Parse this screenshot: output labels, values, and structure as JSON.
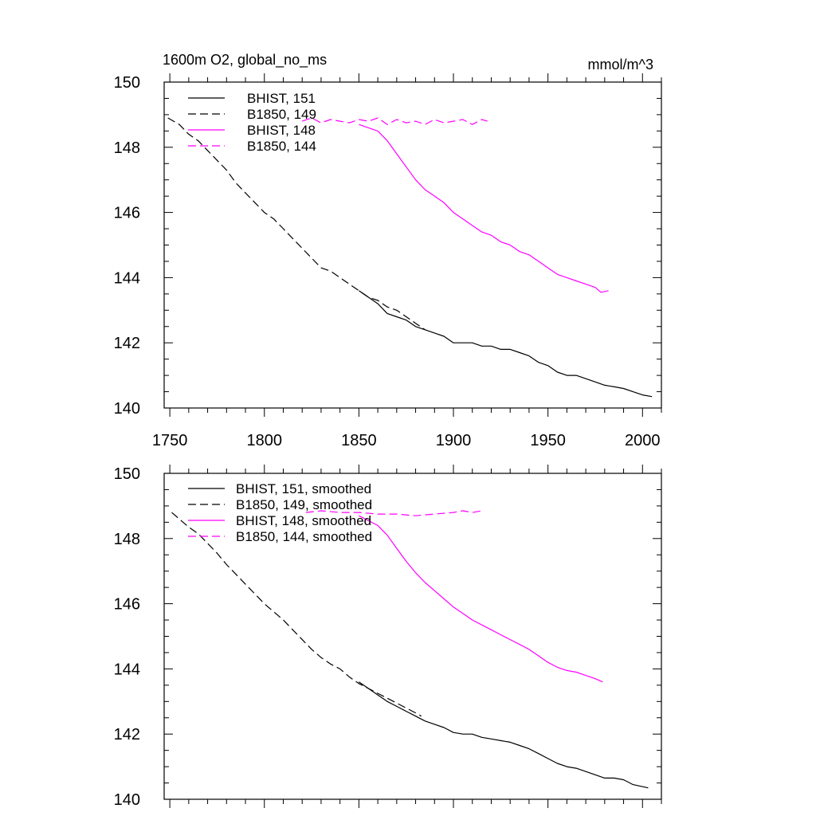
{
  "chart_data": [
    {
      "type": "line",
      "title": "1600m O2, global_no_ms",
      "units": "mmol/m^3",
      "xlim": [
        1747,
        2010
      ],
      "ylim": [
        140,
        150
      ],
      "x_ticks": [
        "1750",
        "1800",
        "1850",
        "1900",
        "1950",
        "2000"
      ],
      "y_ticks": [
        "140",
        "142",
        "144",
        "146",
        "148",
        "150"
      ],
      "legend_position": "top-left",
      "series": [
        {
          "name": "BHIST, 151",
          "color": "#000000",
          "dash": "solid",
          "x": [
            1850,
            1855,
            1860,
            1865,
            1870,
            1875,
            1880,
            1885,
            1890,
            1895,
            1900,
            1905,
            1910,
            1915,
            1920,
            1925,
            1930,
            1935,
            1940,
            1945,
            1950,
            1955,
            1960,
            1965,
            1970,
            1975,
            1980,
            1985,
            1990,
            1995,
            2000,
            2005
          ],
          "y": [
            143.6,
            143.4,
            143.2,
            142.9,
            142.8,
            142.7,
            142.5,
            142.4,
            142.3,
            142.2,
            142.0,
            142.0,
            142.0,
            141.9,
            141.9,
            141.8,
            141.8,
            141.7,
            141.6,
            141.4,
            141.3,
            141.1,
            141.0,
            141.0,
            140.9,
            140.8,
            140.7,
            140.65,
            140.6,
            140.5,
            140.4,
            140.35
          ]
        },
        {
          "name": "B1850, 149",
          "color": "#000000",
          "dash": "dashed",
          "x": [
            1749,
            1755,
            1760,
            1765,
            1770,
            1775,
            1780,
            1785,
            1790,
            1795,
            1800,
            1805,
            1810,
            1815,
            1820,
            1825,
            1830,
            1835,
            1840,
            1845,
            1850,
            1855,
            1860,
            1865,
            1870,
            1875,
            1880,
            1885
          ],
          "y": [
            148.9,
            148.7,
            148.4,
            148.2,
            147.9,
            147.6,
            147.3,
            146.9,
            146.6,
            146.3,
            146.0,
            145.8,
            145.5,
            145.2,
            144.9,
            144.6,
            144.3,
            144.2,
            144.0,
            143.8,
            143.6,
            143.4,
            143.3,
            143.1,
            143.0,
            142.8,
            142.6,
            142.4
          ]
        },
        {
          "name": "BHIST, 148",
          "color": "#ff00ff",
          "dash": "solid",
          "x": [
            1850,
            1855,
            1860,
            1865,
            1870,
            1875,
            1880,
            1885,
            1890,
            1895,
            1900,
            1905,
            1910,
            1915,
            1920,
            1925,
            1930,
            1935,
            1940,
            1945,
            1950,
            1955,
            1960,
            1965,
            1970,
            1975,
            1978,
            1982
          ],
          "y": [
            148.7,
            148.6,
            148.5,
            148.2,
            147.8,
            147.4,
            147.0,
            146.7,
            146.5,
            146.3,
            146.0,
            145.8,
            145.6,
            145.4,
            145.3,
            145.1,
            145.0,
            144.8,
            144.7,
            144.5,
            144.3,
            144.1,
            144.0,
            143.9,
            143.8,
            143.7,
            143.55,
            143.6
          ]
        },
        {
          "name": "B1850, 144",
          "color": "#ff00ff",
          "dash": "dashed",
          "x": [
            1820,
            1825,
            1830,
            1835,
            1840,
            1845,
            1850,
            1855,
            1860,
            1865,
            1870,
            1875,
            1880,
            1885,
            1890,
            1895,
            1900,
            1905,
            1910,
            1915,
            1918
          ],
          "y": [
            148.8,
            148.9,
            148.75,
            148.85,
            148.8,
            148.75,
            148.85,
            148.8,
            148.9,
            148.7,
            148.85,
            148.75,
            148.8,
            148.7,
            148.85,
            148.75,
            148.8,
            148.85,
            148.7,
            148.85,
            148.8
          ]
        }
      ]
    },
    {
      "type": "line",
      "xlim": [
        1747,
        2010
      ],
      "ylim": [
        140,
        150
      ],
      "y_ticks": [
        "140",
        "142",
        "144",
        "146",
        "148",
        "150"
      ],
      "legend_position": "top-left",
      "series": [
        {
          "name": "BHIST, 151, smoothed",
          "color": "#000000",
          "dash": "solid",
          "x": [
            1850,
            1855,
            1860,
            1865,
            1870,
            1875,
            1880,
            1885,
            1890,
            1895,
            1900,
            1905,
            1910,
            1915,
            1920,
            1925,
            1930,
            1935,
            1940,
            1945,
            1950,
            1955,
            1960,
            1965,
            1970,
            1975,
            1980,
            1985,
            1990,
            1995,
            2003
          ],
          "y": [
            143.6,
            143.4,
            143.2,
            143.0,
            142.85,
            142.7,
            142.55,
            142.4,
            142.3,
            142.2,
            142.05,
            142.0,
            142.0,
            141.9,
            141.85,
            141.8,
            141.75,
            141.65,
            141.55,
            141.4,
            141.25,
            141.1,
            141.0,
            140.95,
            140.85,
            140.75,
            140.65,
            140.65,
            140.6,
            140.45,
            140.35
          ]
        },
        {
          "name": "B1850, 149, smoothed",
          "color": "#000000",
          "dash": "dashed",
          "x": [
            1751,
            1755,
            1760,
            1765,
            1770,
            1775,
            1780,
            1785,
            1790,
            1795,
            1800,
            1805,
            1810,
            1815,
            1820,
            1825,
            1830,
            1835,
            1840,
            1845,
            1850,
            1855,
            1860,
            1865,
            1870,
            1875,
            1880,
            1883
          ],
          "y": [
            148.8,
            148.6,
            148.35,
            148.15,
            147.85,
            147.55,
            147.2,
            146.9,
            146.6,
            146.3,
            146.0,
            145.75,
            145.5,
            145.2,
            144.9,
            144.6,
            144.35,
            144.15,
            144.0,
            143.75,
            143.55,
            143.4,
            143.25,
            143.1,
            142.95,
            142.8,
            142.65,
            142.55
          ]
        },
        {
          "name": "BHIST, 148, smoothed",
          "color": "#ff00ff",
          "dash": "solid",
          "x": [
            1850,
            1855,
            1860,
            1865,
            1870,
            1875,
            1880,
            1885,
            1890,
            1895,
            1900,
            1905,
            1910,
            1915,
            1920,
            1925,
            1930,
            1935,
            1940,
            1945,
            1950,
            1955,
            1960,
            1965,
            1970,
            1975,
            1979
          ],
          "y": [
            148.7,
            148.55,
            148.4,
            148.1,
            147.7,
            147.3,
            146.95,
            146.65,
            146.4,
            146.15,
            145.9,
            145.7,
            145.5,
            145.35,
            145.2,
            145.05,
            144.9,
            144.75,
            144.6,
            144.4,
            144.2,
            144.05,
            143.95,
            143.9,
            143.8,
            143.7,
            143.6
          ]
        },
        {
          "name": "B1850, 144, smoothed",
          "color": "#ff00ff",
          "dash": "dashed",
          "x": [
            1822,
            1830,
            1840,
            1850,
            1860,
            1870,
            1880,
            1890,
            1900,
            1905,
            1910,
            1915
          ],
          "y": [
            148.8,
            148.85,
            148.8,
            148.8,
            148.75,
            148.75,
            148.7,
            148.75,
            148.8,
            148.85,
            148.8,
            148.85
          ]
        }
      ]
    }
  ]
}
